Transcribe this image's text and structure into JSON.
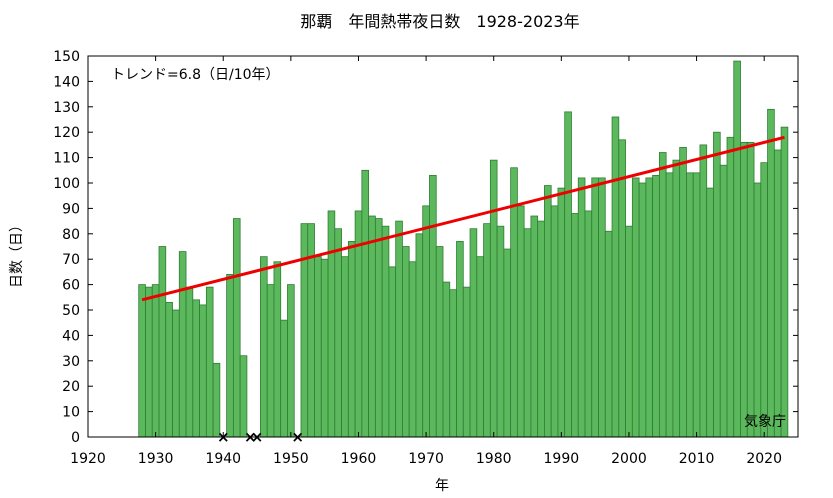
{
  "chart_data": {
    "type": "bar",
    "title": "那覇　年間熱帯夜日数　1928-2023年",
    "xlabel": "年",
    "ylabel": "日数（日）",
    "trend_label": "トレンド=6.8（日/10年）",
    "source": "気象庁",
    "xlim": [
      1920,
      2025
    ],
    "ylim": [
      0,
      150
    ],
    "x_ticks": [
      1920,
      1930,
      1940,
      1950,
      1960,
      1970,
      1980,
      1990,
      2000,
      2010,
      2020
    ],
    "y_ticks": [
      0,
      10,
      20,
      30,
      40,
      50,
      60,
      70,
      80,
      90,
      100,
      110,
      120,
      130,
      140,
      150
    ],
    "grid": false,
    "bar_color": "#5cb85c",
    "bar_edge_color": "#2e7d32",
    "trend_color": "#ee0000",
    "trend_line": {
      "x": [
        1928,
        2023
      ],
      "y": [
        54,
        118
      ]
    },
    "missing_years": [
      1940,
      1944,
      1945,
      1951
    ],
    "missing_marker": "×",
    "years": [
      1928,
      1929,
      1930,
      1931,
      1932,
      1933,
      1934,
      1935,
      1936,
      1937,
      1938,
      1939,
      1941,
      1942,
      1943,
      1946,
      1947,
      1948,
      1949,
      1950,
      1952,
      1953,
      1954,
      1955,
      1956,
      1957,
      1958,
      1959,
      1960,
      1961,
      1962,
      1963,
      1964,
      1965,
      1966,
      1967,
      1968,
      1969,
      1970,
      1971,
      1972,
      1973,
      1974,
      1975,
      1976,
      1977,
      1978,
      1979,
      1980,
      1981,
      1982,
      1983,
      1984,
      1985,
      1986,
      1987,
      1988,
      1989,
      1990,
      1991,
      1992,
      1993,
      1994,
      1995,
      1996,
      1997,
      1998,
      1999,
      2000,
      2001,
      2002,
      2003,
      2004,
      2005,
      2006,
      2007,
      2008,
      2009,
      2010,
      2011,
      2012,
      2013,
      2014,
      2015,
      2016,
      2017,
      2018,
      2019,
      2020,
      2021,
      2022,
      2023
    ],
    "values": [
      60,
      59,
      60,
      75,
      53,
      50,
      73,
      59,
      54,
      52,
      59,
      29,
      64,
      86,
      32,
      71,
      60,
      69,
      46,
      60,
      84,
      84,
      71,
      70,
      89,
      82,
      71,
      77,
      89,
      105,
      87,
      86,
      83,
      67,
      85,
      75,
      69,
      80,
      91,
      103,
      75,
      61,
      58,
      77,
      59,
      82,
      71,
      84,
      109,
      83,
      74,
      106,
      91,
      82,
      87,
      85,
      99,
      91,
      98,
      128,
      88,
      102,
      89,
      102,
      102,
      81,
      126,
      117,
      83,
      102,
      100,
      102,
      103,
      112,
      104,
      109,
      114,
      104,
      104,
      115,
      98,
      120,
      107,
      118,
      148,
      116,
      116,
      100,
      108,
      129,
      113,
      122
    ]
  }
}
